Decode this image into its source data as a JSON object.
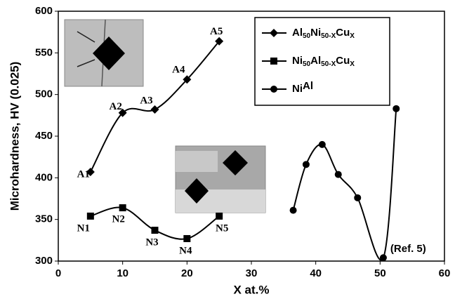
{
  "chart_data": {
    "type": "line",
    "x_label": "X at.%",
    "y_label": "Microhardness, HV (0.025)",
    "xlim": [
      0,
      60
    ],
    "ylim": [
      300,
      600
    ],
    "xticks": [
      0,
      10,
      20,
      30,
      40,
      50,
      60
    ],
    "yticks": [
      300,
      350,
      400,
      450,
      500,
      550,
      600
    ],
    "series": [
      {
        "name": "Al50Ni50-XCuX",
        "color": "#000000",
        "marker": "diamond",
        "x": [
          5,
          10,
          15,
          20,
          25
        ],
        "values": [
          407,
          478,
          482,
          518,
          564
        ],
        "point_labels": [
          "A1",
          "A2",
          "A3",
          "A4",
          "A5"
        ]
      },
      {
        "name": "Ni50Al50-XCuX",
        "color": "#000000",
        "marker": "square",
        "x": [
          5,
          10,
          15,
          20,
          25
        ],
        "values": [
          354,
          364,
          337,
          327,
          354
        ],
        "point_labels": [
          "N1",
          "N2",
          "N3",
          "N4",
          "N5"
        ]
      },
      {
        "name": "NiAl",
        "color": "#000000",
        "marker": "circle",
        "x": [
          36.5,
          38.5,
          41,
          43.5,
          46.5,
          50.5,
          52.5
        ],
        "values": [
          361,
          416,
          440,
          404,
          376,
          304,
          483
        ]
      }
    ],
    "annotation": "(Ref. 5)"
  }
}
